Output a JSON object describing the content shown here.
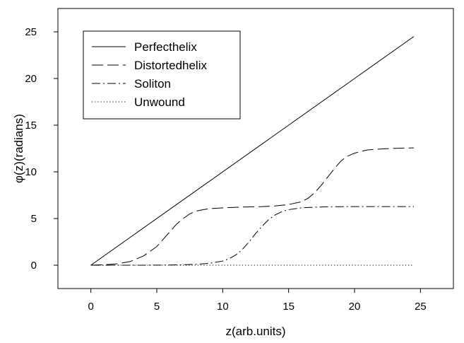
{
  "chart_data": {
    "type": "line",
    "title": "",
    "xlabel": "z(arb.units)",
    "ylabel": "φ(z)(radians)",
    "xlim": [
      -2.5,
      27.5
    ],
    "ylim": [
      -2.5,
      27.5
    ],
    "x_ticks": [
      "0",
      "5",
      "10",
      "15",
      "20",
      "25"
    ],
    "y_ticks": [
      "0",
      "5",
      "10",
      "15",
      "20",
      "25"
    ],
    "grid": false,
    "legend_position": "top-left",
    "series": [
      {
        "name": "Perfecthelix",
        "style": "solid",
        "x": [
          0,
          24.5
        ],
        "y": [
          0,
          24.5
        ]
      },
      {
        "name": "Distortedhelix",
        "style": "dashed",
        "x": [
          0,
          1,
          2,
          3,
          4,
          5,
          5.5,
          6,
          6.5,
          7,
          7.5,
          8,
          8.5,
          9,
          10,
          11,
          12,
          13,
          14,
          15,
          16,
          16.5,
          17,
          17.5,
          18,
          18.5,
          19,
          19.5,
          20,
          20.5,
          21,
          22,
          23,
          24,
          24.5
        ],
        "y": [
          0,
          0.05,
          0.15,
          0.4,
          1.0,
          2.0,
          2.8,
          3.6,
          4.4,
          5.0,
          5.5,
          5.8,
          5.95,
          6.05,
          6.15,
          6.2,
          6.25,
          6.28,
          6.35,
          6.5,
          6.8,
          7.2,
          7.8,
          8.6,
          9.5,
          10.4,
          11.2,
          11.7,
          12.0,
          12.2,
          12.35,
          12.45,
          12.52,
          12.55,
          12.57
        ]
      },
      {
        "name": "Soliton",
        "style": "dashdot",
        "x": [
          0,
          2,
          4,
          6,
          7,
          8,
          9,
          10,
          10.5,
          11,
          11.5,
          12,
          12.5,
          13,
          13.5,
          14,
          14.5,
          15,
          16,
          17,
          18,
          20,
          22,
          24.5
        ],
        "y": [
          0,
          0,
          0,
          0.02,
          0.05,
          0.1,
          0.2,
          0.45,
          0.7,
          1.1,
          1.7,
          2.5,
          3.4,
          4.2,
          4.9,
          5.4,
          5.75,
          5.95,
          6.15,
          6.22,
          6.26,
          6.28,
          6.28,
          6.28
        ]
      },
      {
        "name": "Unwound",
        "style": "dotted",
        "x": [
          0,
          24.5
        ],
        "y": [
          0,
          0
        ]
      }
    ]
  }
}
